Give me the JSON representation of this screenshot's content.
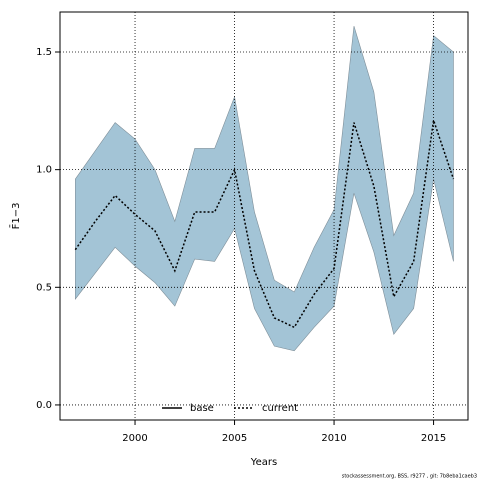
{
  "chart_data": {
    "type": "line",
    "xlabel": "Years",
    "ylabel": "F̄1−3",
    "footnote": "stockassessment.org, BSS, r9277 , git: 7b8eba1caeb3",
    "x": [
      1997,
      1998,
      1999,
      2000,
      2001,
      2002,
      2003,
      2004,
      2005,
      2006,
      2007,
      2008,
      2009,
      2010,
      2011,
      2012,
      2013,
      2014,
      2015,
      2016
    ],
    "series": [
      {
        "name": "base",
        "color": "#000000",
        "style": "solid"
      },
      {
        "name": "current",
        "color": "#000000",
        "style": "dotted",
        "band_color": "#a3c4d6",
        "values": [
          0.66,
          0.78,
          0.89,
          0.81,
          0.74,
          0.57,
          0.82,
          0.82,
          1.0,
          0.57,
          0.37,
          0.33,
          0.47,
          0.58,
          1.2,
          0.93,
          0.46,
          0.61,
          1.21,
          0.96
        ],
        "upper": [
          0.96,
          1.08,
          1.2,
          1.13,
          1.0,
          0.78,
          1.09,
          1.09,
          1.31,
          0.82,
          0.53,
          0.48,
          0.67,
          0.83,
          1.61,
          1.33,
          0.72,
          0.9,
          1.57,
          1.5
        ],
        "lower": [
          0.45,
          0.56,
          0.67,
          0.59,
          0.52,
          0.42,
          0.62,
          0.61,
          0.75,
          0.41,
          0.25,
          0.23,
          0.33,
          0.42,
          0.9,
          0.65,
          0.3,
          0.41,
          0.96,
          0.61
        ]
      }
    ],
    "xlim": [
      1996.23,
      2016.73
    ],
    "ylim": [
      -0.064,
      1.67
    ],
    "xticks": [
      2000,
      2005,
      2010,
      2015
    ],
    "yticks": [
      {
        "value": 0,
        "label": "0.0"
      },
      {
        "value": 0.5,
        "label": "0.5"
      },
      {
        "value": 1,
        "label": "1.0"
      },
      {
        "value": 1.5,
        "label": "1.5"
      }
    ],
    "grid": true,
    "legend": "bottom"
  }
}
